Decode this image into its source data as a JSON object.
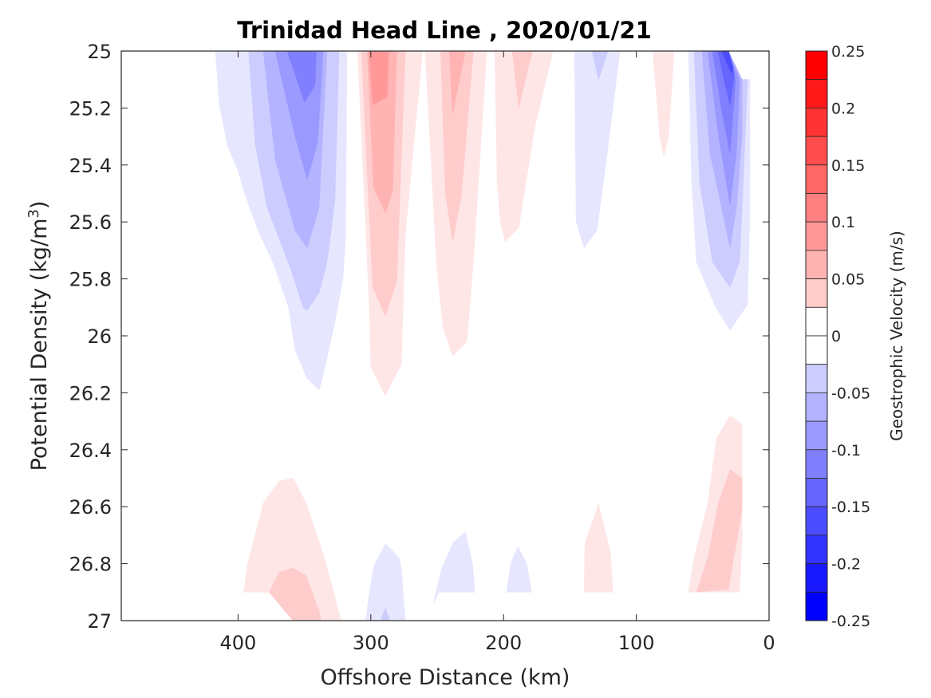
{
  "chart_data": {
    "type": "contourf",
    "title": "Trinidad Head Line , 2020/01/21",
    "xlabel": "Offshore Distance (km)",
    "ylabel_main": "Potential Density (kg/m",
    "ylabel_sup": "3",
    "ylabel_close": ")",
    "xlim": [
      488,
      0
    ],
    "ylim": [
      25,
      27
    ],
    "x_reversed": true,
    "y_reversed": true,
    "x_ticks": [
      400,
      300,
      200,
      100,
      0
    ],
    "x_tick_labels": [
      "400",
      "300",
      "200",
      "100",
      "0"
    ],
    "y_ticks": [
      25,
      25.2,
      25.4,
      25.6,
      25.8,
      26,
      26.2,
      26.4,
      26.6,
      26.8,
      27
    ],
    "y_tick_labels": [
      "25",
      "25.2",
      "25.4",
      "25.6",
      "25.8",
      "26",
      "26.2",
      "26.4",
      "26.6",
      "26.8",
      "27"
    ],
    "colorbar": {
      "label": "Geostrophic Velocity (m/s)",
      "range": [
        -0.25,
        0.25
      ],
      "level_step": 0.025,
      "ticks": [
        0.25,
        0.2,
        0.15,
        0.1,
        0.05,
        0,
        -0.05,
        -0.1,
        -0.15,
        -0.2,
        -0.25
      ],
      "tick_labels": [
        "0.25",
        "0.2",
        "0.15",
        "0.1",
        "0.05",
        "0",
        "-0.05",
        "-0.1",
        "-0.15",
        "-0.2",
        "-0.25"
      ],
      "negative_color": "#0000ff",
      "zero_color": "#ffffff",
      "positive_color": "#ff0000"
    },
    "contour_regions": [
      {
        "name": "blue-core-350km",
        "level": -0.025,
        "points": [
          [
            417,
            25
          ],
          [
            414,
            25.19
          ],
          [
            408,
            25.33
          ],
          [
            400,
            25.42
          ],
          [
            395,
            25.5
          ],
          [
            385,
            25.63
          ],
          [
            373,
            25.75
          ],
          [
            362,
            25.9
          ],
          [
            357,
            26.05
          ],
          [
            348,
            26.15
          ],
          [
            339,
            26.19
          ],
          [
            336,
            26.14
          ],
          [
            327,
            25.95
          ],
          [
            321,
            25.8
          ],
          [
            319,
            25.65
          ],
          [
            318,
            25
          ]
        ]
      },
      {
        "name": "blue-core-350km",
        "level": -0.05,
        "points": [
          [
            392,
            25
          ],
          [
            387,
            25.33
          ],
          [
            378,
            25.55
          ],
          [
            369,
            25.66
          ],
          [
            360,
            25.77
          ],
          [
            351,
            25.9
          ],
          [
            348,
            25.91
          ],
          [
            339,
            25.85
          ],
          [
            333,
            25.74
          ],
          [
            327,
            25.52
          ],
          [
            324,
            25
          ]
        ]
      },
      {
        "name": "blue-core-350km",
        "level": -0.075,
        "points": [
          [
            381,
            25
          ],
          [
            372,
            25.38
          ],
          [
            357,
            25.63
          ],
          [
            348,
            25.69
          ],
          [
            339,
            25.55
          ],
          [
            333,
            25
          ]
        ]
      },
      {
        "name": "blue-core-350km",
        "level": -0.1,
        "points": [
          [
            372,
            25
          ],
          [
            357,
            25.3
          ],
          [
            348,
            25.45
          ],
          [
            340,
            25.32
          ],
          [
            336,
            25
          ]
        ]
      },
      {
        "name": "blue-core-350km",
        "level": -0.125,
        "points": [
          [
            363,
            25
          ],
          [
            350,
            25.18
          ],
          [
            342,
            25.12
          ],
          [
            341,
            25
          ]
        ]
      },
      {
        "name": "red-core-290km",
        "level": 0.025,
        "points": [
          [
            310,
            25
          ],
          [
            305,
            25.5
          ],
          [
            301,
            25.92
          ],
          [
            300,
            26.11
          ],
          [
            289,
            26.21
          ],
          [
            277,
            26.1
          ],
          [
            274,
            25.64
          ],
          [
            261,
            25
          ]
        ]
      },
      {
        "name": "red-core-290km",
        "level": 0.05,
        "points": [
          [
            307,
            25
          ],
          [
            303,
            25.4
          ],
          [
            298.5,
            25.83
          ],
          [
            289,
            25.93
          ],
          [
            280.5,
            25.81
          ],
          [
            274,
            25
          ]
        ]
      },
      {
        "name": "red-core-290km",
        "level": 0.075,
        "points": [
          [
            302.7,
            25
          ],
          [
            297.9,
            25.48
          ],
          [
            288.9,
            25.57
          ],
          [
            283.5,
            25.49
          ],
          [
            280.5,
            25
          ]
        ]
      },
      {
        "name": "red-core-290km",
        "level": 0.1,
        "points": [
          [
            301.5,
            25
          ],
          [
            298.5,
            25.19
          ],
          [
            287.7,
            25.16
          ],
          [
            286.5,
            25
          ]
        ]
      },
      {
        "name": "red-core-240km",
        "level": 0.025,
        "points": [
          [
            259,
            25
          ],
          [
            250.5,
            25.75
          ],
          [
            245.6,
            25.97
          ],
          [
            238.4,
            26.07
          ],
          [
            227.6,
            26.02
          ],
          [
            222.8,
            25.74
          ],
          [
            212.6,
            25
          ]
        ]
      },
      {
        "name": "red-core-240km",
        "level": 0.05,
        "points": [
          [
            247.4,
            25
          ],
          [
            243.8,
            25.5
          ],
          [
            238.4,
            25.67
          ],
          [
            231.8,
            25.51
          ],
          [
            222.8,
            25
          ]
        ]
      },
      {
        "name": "red-core-240km",
        "level": 0.075,
        "points": [
          [
            240.8,
            25
          ],
          [
            238.4,
            25.22
          ],
          [
            228.8,
            25
          ]
        ]
      },
      {
        "name": "red-core-190km",
        "level": 0.025,
        "points": [
          [
            206.6,
            25
          ],
          [
            204.8,
            25.46
          ],
          [
            202.4,
            25.6
          ],
          [
            198.8,
            25.67
          ],
          [
            188.6,
            25.62
          ],
          [
            176.6,
            25.27
          ],
          [
            162.8,
            25
          ]
        ]
      },
      {
        "name": "red-core-190km",
        "level": 0.05,
        "points": [
          [
            193.4,
            25
          ],
          [
            188.6,
            25.2
          ],
          [
            178.4,
            25
          ]
        ]
      },
      {
        "name": "blue-core-135km",
        "level": -0.025,
        "points": [
          [
            146.5,
            25
          ],
          [
            145.3,
            25.6
          ],
          [
            139.3,
            25.69
          ],
          [
            129.7,
            25.63
          ],
          [
            122.5,
            25.38
          ],
          [
            112.3,
            25
          ]
        ]
      },
      {
        "name": "blue-core-135km",
        "level": -0.05,
        "points": [
          [
            133.3,
            25
          ],
          [
            128.5,
            25.1
          ],
          [
            121.3,
            25
          ]
        ]
      },
      {
        "name": "red-sliver-80km",
        "level": 0.025,
        "points": [
          [
            87.7,
            25
          ],
          [
            82.3,
            25.3
          ],
          [
            79.3,
            25.37
          ],
          [
            75.7,
            25.3
          ],
          [
            71.5,
            25
          ]
        ]
      },
      {
        "name": "blue-core-30km",
        "level": -0.025,
        "points": [
          [
            60.7,
            25
          ],
          [
            30.6,
            25
          ],
          [
            20.4,
            25.1
          ],
          [
            14.4,
            25.1
          ],
          [
            14.4,
            25.55
          ],
          [
            16.2,
            25.89
          ],
          [
            29.4,
            25.98
          ],
          [
            40.2,
            25.9
          ],
          [
            54.7,
            25.74
          ],
          [
            58.3,
            25.46
          ]
        ]
      },
      {
        "name": "blue-core-30km",
        "level": -0.05,
        "points": [
          [
            56.5,
            25
          ],
          [
            30.6,
            25
          ],
          [
            20.4,
            25.1
          ],
          [
            16.2,
            25.1
          ],
          [
            18.6,
            25.36
          ],
          [
            22.2,
            25.74
          ],
          [
            29.4,
            25.83
          ],
          [
            42.6,
            25.74
          ],
          [
            52.3,
            25.46
          ]
        ]
      },
      {
        "name": "blue-core-30km",
        "level": -0.075,
        "points": [
          [
            50.5,
            25
          ],
          [
            30.6,
            25
          ],
          [
            20.4,
            25.1
          ],
          [
            20.4,
            25.3
          ],
          [
            24.6,
            25.55
          ],
          [
            29.4,
            25.69
          ],
          [
            44.4,
            25.36
          ]
        ]
      },
      {
        "name": "blue-core-30km",
        "level": -0.1,
        "points": [
          [
            46.2,
            25
          ],
          [
            30.6,
            25
          ],
          [
            22.2,
            25.1
          ],
          [
            24.6,
            25.36
          ],
          [
            29.4,
            25.54
          ],
          [
            38,
            25.3
          ]
        ]
      },
      {
        "name": "blue-core-30km",
        "level": -0.125,
        "points": [
          [
            42.6,
            25
          ],
          [
            30.6,
            25
          ],
          [
            25.2,
            25.1
          ],
          [
            29.4,
            25.36
          ],
          [
            36,
            25.2
          ]
        ]
      },
      {
        "name": "blue-core-30km",
        "level": -0.15,
        "points": [
          [
            38.4,
            25
          ],
          [
            30.6,
            25
          ],
          [
            26,
            25.08
          ],
          [
            29.4,
            25.19
          ],
          [
            34,
            25.1
          ]
        ]
      },
      {
        "name": "blue-core-30km",
        "level": -0.175,
        "points": [
          [
            35.4,
            25
          ],
          [
            30.6,
            25
          ],
          [
            27,
            25.06
          ],
          [
            28.2,
            25.08
          ],
          [
            32,
            25.04
          ]
        ]
      },
      {
        "name": "red-deep-370km",
        "level": 0.025,
        "points": [
          [
            395.8,
            26.9
          ],
          [
            392.8,
            26.8
          ],
          [
            380.8,
            26.585
          ],
          [
            368.8,
            26.51
          ],
          [
            358.6,
            26.5
          ],
          [
            349,
            26.585
          ],
          [
            337,
            26.75
          ],
          [
            328.5,
            26.89
          ],
          [
            322.5,
            27
          ],
          [
            358.6,
            27
          ],
          [
            376.6,
            26.9
          ]
        ]
      },
      {
        "name": "red-deep-370km",
        "level": 0.05,
        "points": [
          [
            376.6,
            26.9
          ],
          [
            368.8,
            26.83
          ],
          [
            358.6,
            26.815
          ],
          [
            349,
            26.84
          ],
          [
            338.7,
            26.97
          ],
          [
            337.5,
            27
          ],
          [
            358.6,
            27
          ]
        ]
      },
      {
        "name": "blue-deep-290km",
        "level": -0.025,
        "points": [
          [
            303.9,
            27
          ],
          [
            300.9,
            26.9
          ],
          [
            297.9,
            26.81
          ],
          [
            288.9,
            26.73
          ],
          [
            278.7,
            26.78
          ],
          [
            276.9,
            26.82
          ],
          [
            275.7,
            26.91
          ],
          [
            273.9,
            27
          ]
        ]
      },
      {
        "name": "blue-deep-290km",
        "level": -0.05,
        "points": [
          [
            292.5,
            27
          ],
          [
            288.9,
            26.955
          ],
          [
            285.9,
            27
          ]
        ]
      },
      {
        "name": "blue-deep-240km",
        "level": -0.025,
        "points": [
          [
            252.9,
            26.94
          ],
          [
            246.8,
            26.82
          ],
          [
            237.8,
            26.725
          ],
          [
            228.8,
            26.69
          ],
          [
            223.4,
            26.8
          ],
          [
            221.6,
            26.9
          ],
          [
            248.6,
            26.9
          ]
        ]
      },
      {
        "name": "blue-deep-190km",
        "level": -0.025,
        "points": [
          [
            197.6,
            26.9
          ],
          [
            194.6,
            26.8
          ],
          [
            189.2,
            26.74
          ],
          [
            182.6,
            26.8
          ],
          [
            179,
            26.9
          ]
        ]
      },
      {
        "name": "red-deep-130km",
        "level": 0.025,
        "points": [
          [
            139.3,
            26.9
          ],
          [
            138.7,
            26.73
          ],
          [
            128.5,
            26.59
          ],
          [
            119.5,
            26.76
          ],
          [
            117.7,
            26.9
          ]
        ]
      },
      {
        "name": "red-deep-30km",
        "level": 0.025,
        "points": [
          [
            60.7,
            26.9
          ],
          [
            56.5,
            26.78
          ],
          [
            46.2,
            26.59
          ],
          [
            39.6,
            26.36
          ],
          [
            29.4,
            26.28
          ],
          [
            20.4,
            26.31
          ],
          [
            20.4,
            26.71
          ],
          [
            22.2,
            26.9
          ]
        ]
      },
      {
        "name": "red-deep-30km",
        "level": 0.05,
        "points": [
          [
            54.7,
            26.9
          ],
          [
            46.2,
            26.78
          ],
          [
            38.4,
            26.59
          ],
          [
            29.4,
            26.47
          ],
          [
            20.4,
            26.5
          ],
          [
            20.4,
            26.61
          ],
          [
            30.6,
            26.89
          ]
        ]
      }
    ]
  }
}
